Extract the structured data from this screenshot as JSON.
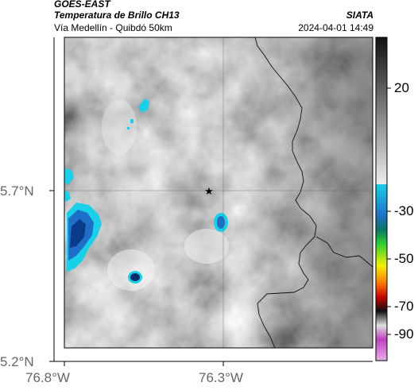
{
  "header": {
    "satellite": "GOES-EAST",
    "product": "Temperatura de Brillo CH13",
    "region": "Vía Medellín - Quibdó 50km",
    "agency": "SIATA",
    "timestamp": "2024-04-01 14:49"
  },
  "axes": {
    "lat_ticks": [
      "5.7°N",
      "5.2°N"
    ],
    "lon_ticks": [
      "76.8°W",
      "76.3°W"
    ]
  },
  "colorbar": {
    "ticks": [
      "20",
      "-30",
      "-50",
      "-70",
      "-90"
    ],
    "colors": {
      "cold_blue": "#1e6fc8",
      "cyan": "#18d0e8",
      "green": "#2fd12f",
      "yellow": "#f4f000",
      "orange": "#ff7a00",
      "red": "#c80000",
      "black": "#101010",
      "magenta": "#c040c0"
    }
  },
  "map": {
    "marker": "star-icon",
    "grid": true
  }
}
